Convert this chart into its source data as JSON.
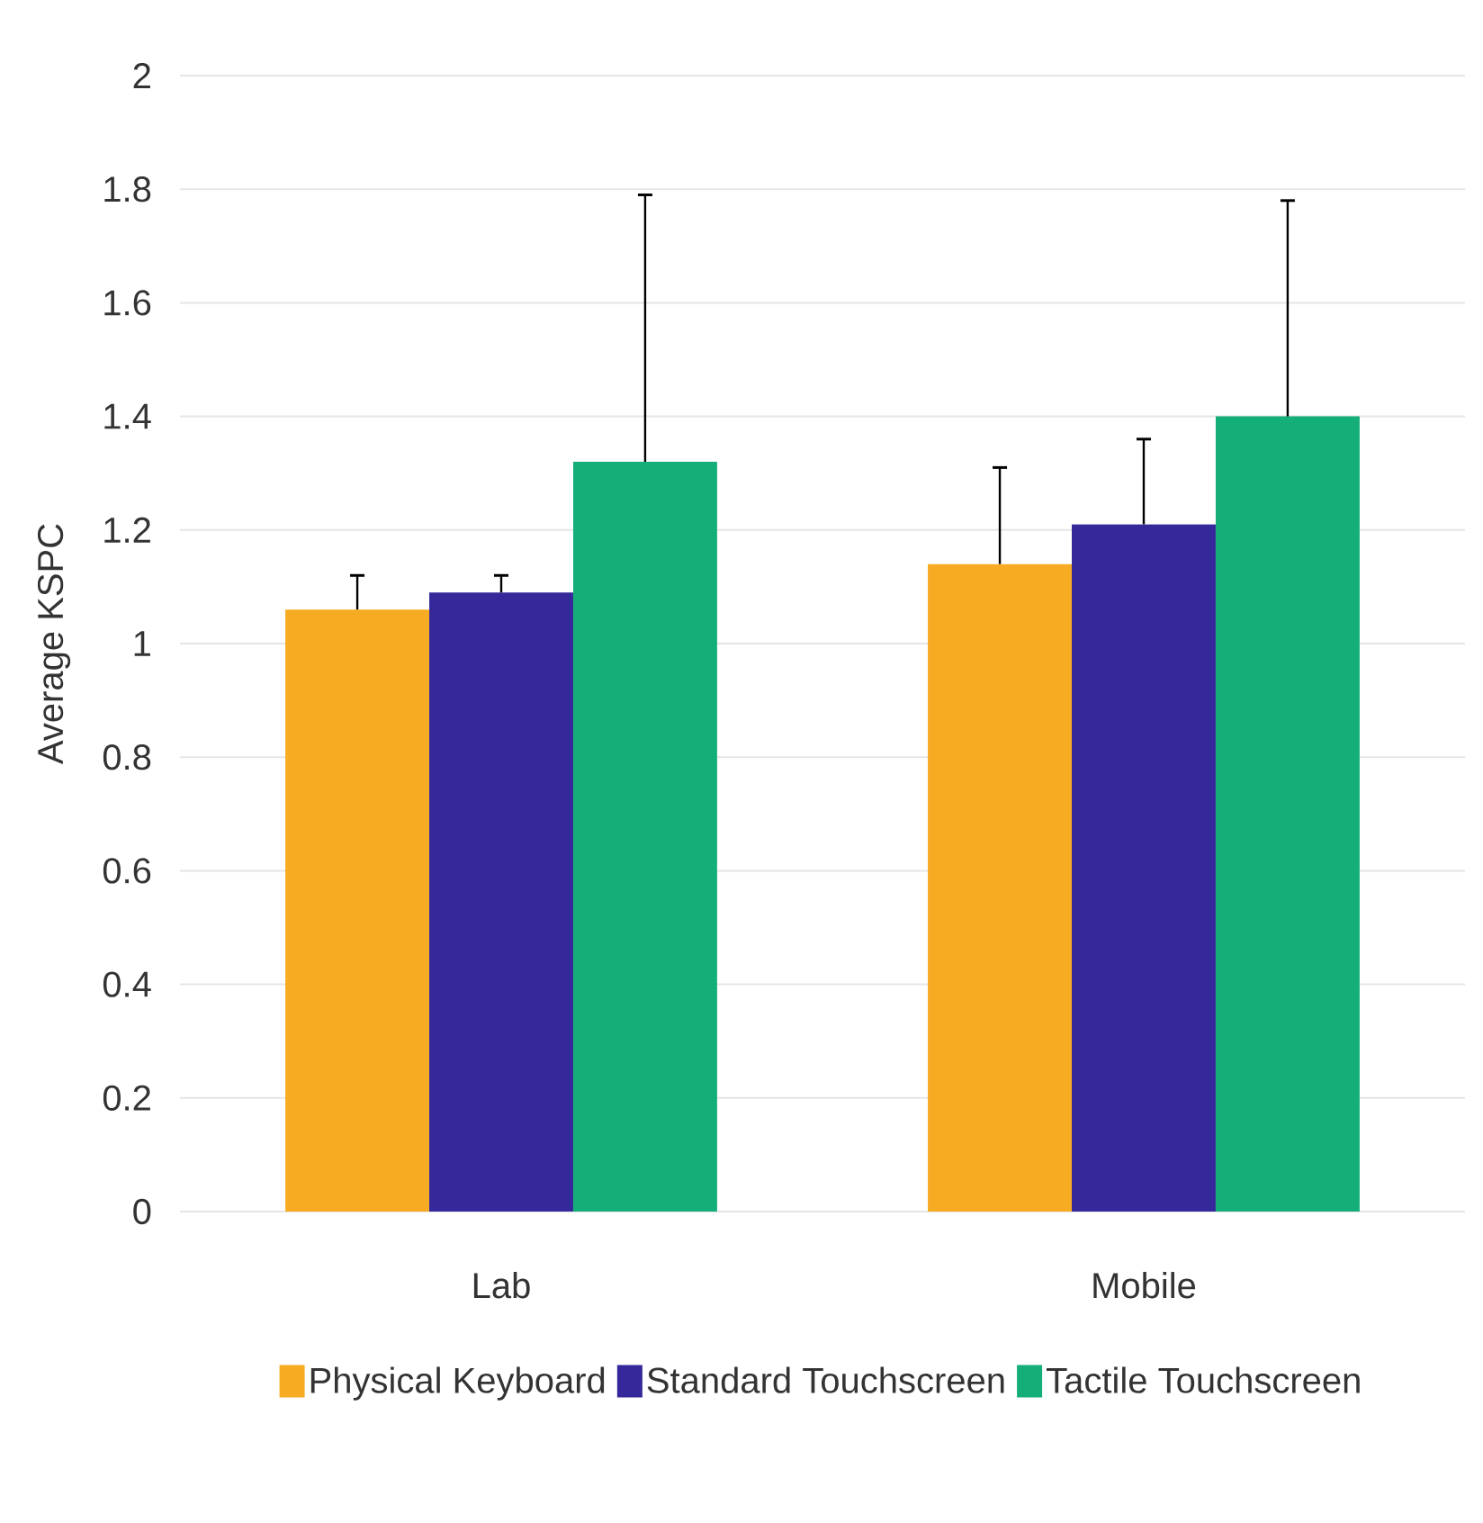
{
  "chart_data": {
    "type": "bar",
    "ylabel": "Average KSPC",
    "categories": [
      "Lab",
      "Mobile"
    ],
    "series": [
      {
        "name": "Physical Keyboard",
        "color": "#f7ab22",
        "values": [
          1.06,
          1.14
        ],
        "errors": [
          [
            1.06,
            1.12
          ],
          [
            1.14,
            1.31
          ]
        ]
      },
      {
        "name": "Standard Touchscreen",
        "color": "#35289a",
        "values": [
          1.09,
          1.21
        ],
        "errors": [
          [
            1.09,
            1.12
          ],
          [
            1.21,
            1.36
          ]
        ]
      },
      {
        "name": "Tactile Touchscreen",
        "color": "#14ae78",
        "values": [
          1.32,
          1.4
        ],
        "errors": [
          [
            1.32,
            1.79
          ],
          [
            1.4,
            1.78
          ]
        ]
      }
    ],
    "ylim": [
      0,
      2
    ],
    "yticks": [
      0,
      0.2,
      0.4,
      0.6,
      0.8,
      1,
      1.2,
      1.4,
      1.6,
      1.8,
      2
    ],
    "grid": "y",
    "legend": "bottom"
  }
}
